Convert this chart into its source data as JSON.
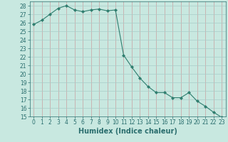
{
  "x": [
    0,
    1,
    2,
    3,
    4,
    5,
    6,
    7,
    8,
    9,
    10,
    11,
    12,
    13,
    14,
    15,
    16,
    17,
    18,
    19,
    20,
    21,
    22,
    23
  ],
  "y": [
    25.8,
    26.3,
    27.0,
    27.7,
    28.0,
    27.5,
    27.3,
    27.5,
    27.6,
    27.4,
    27.5,
    22.2,
    20.8,
    19.5,
    18.5,
    17.8,
    17.8,
    17.2,
    17.2,
    17.8,
    16.8,
    16.2,
    15.5,
    14.9
  ],
  "line_color": "#2e7d6e",
  "marker": "D",
  "marker_size": 2.2,
  "bg_color": "#c8e8e0",
  "xlabel": "Humidex (Indice chaleur)",
  "ylim": [
    15,
    28.5
  ],
  "xlim": [
    -0.5,
    23.5
  ],
  "yticks": [
    15,
    16,
    17,
    18,
    19,
    20,
    21,
    22,
    23,
    24,
    25,
    26,
    27,
    28
  ],
  "xticks": [
    0,
    1,
    2,
    3,
    4,
    5,
    6,
    7,
    8,
    9,
    10,
    11,
    12,
    13,
    14,
    15,
    16,
    17,
    18,
    19,
    20,
    21,
    22,
    23
  ],
  "font_color": "#2a6e6e",
  "grid_vertical_color": "#c8a0a0",
  "grid_horizontal_color": "#a8ccc8",
  "tick_fontsize": 5.5,
  "xlabel_fontsize": 7.0
}
